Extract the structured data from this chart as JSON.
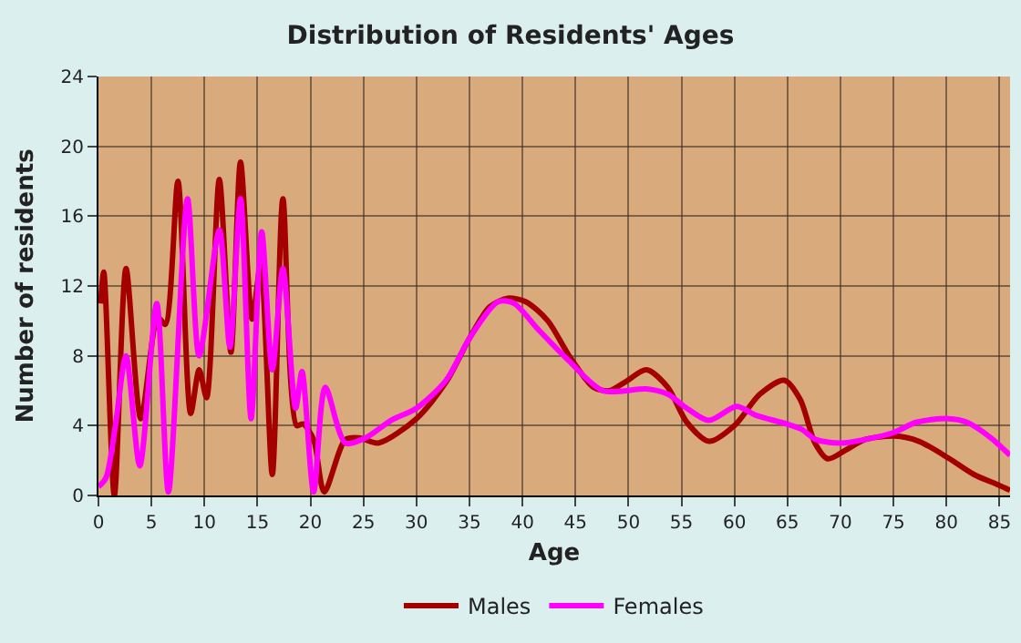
{
  "chart_data": {
    "type": "line",
    "title": "Distribution of Residents' Ages",
    "xlabel": "Age",
    "ylabel": "Number of residents",
    "xlim": [
      0,
      86
    ],
    "xticks": [
      0,
      5,
      10,
      15,
      20,
      25,
      30,
      35,
      40,
      45,
      50,
      55,
      60,
      65,
      70,
      75,
      80,
      85
    ],
    "ylim": [
      0,
      24
    ],
    "yticks": [
      0,
      4,
      8,
      12,
      16,
      20,
      24
    ],
    "grid": true,
    "legend": "bottom",
    "marker": "none",
    "line_style": "solid",
    "series": [
      {
        "name": "Males",
        "color": "#a50000",
        "x": [
          0.2,
          0.5,
          1.5,
          2.6,
          4,
          5.6,
          6.3,
          7.5,
          8.7,
          9.5,
          10.2,
          11.4,
          12.5,
          13.4,
          14.5,
          15.3,
          16.4,
          17.4,
          18.7,
          19.3,
          20.3,
          21.3,
          23.3,
          24.6,
          26.4,
          30,
          32.8,
          35,
          36.9,
          38.6,
          40.3,
          42.4,
          44.4,
          46.7,
          48.2,
          49.7,
          51.7,
          53.7,
          55.5,
          57.6,
          60,
          62.4,
          64.7,
          66.2,
          67.6,
          68.8,
          70.5,
          72.3,
          75.1,
          77.4,
          80.3,
          82.6,
          84.9,
          86
        ],
        "values": [
          11,
          12.8,
          0,
          13,
          4.4,
          10.2,
          9.8,
          18,
          4.7,
          7.2,
          5.6,
          18.1,
          8.2,
          19.1,
          10.1,
          13.2,
          1.2,
          17,
          4,
          4.1,
          3.2,
          0.2,
          3.2,
          3.3,
          3,
          4.4,
          6.5,
          9,
          10.8,
          11.3,
          11.1,
          10,
          8,
          6.2,
          6,
          6.5,
          7.2,
          6.2,
          4.2,
          3.1,
          4,
          5.8,
          6.6,
          5.5,
          3,
          2.1,
          2.6,
          3.2,
          3.4,
          3.1,
          2.1,
          1.2,
          0.6,
          0.3
        ]
      },
      {
        "name": "Females",
        "color": "#ff00ff",
        "x": [
          0,
          0.7,
          1.6,
          2.6,
          3.9,
          5.5,
          6.6,
          8.4,
          9.5,
          11.4,
          12.4,
          13.4,
          14.4,
          15.4,
          16.4,
          17.4,
          18.6,
          19.2,
          20.3,
          21.4,
          23.3,
          25.2,
          27.6,
          30,
          32.8,
          35,
          37.7,
          39.2,
          41.5,
          44.4,
          47.6,
          51.7,
          53.7,
          55.5,
          57.6,
          60.2,
          62,
          64.9,
          66.3,
          67.7,
          70,
          72.3,
          75,
          77.2,
          80.2,
          81.9,
          84.2,
          86
        ],
        "values": [
          0.5,
          1,
          4,
          8,
          1.7,
          11,
          0.2,
          17,
          8,
          15.2,
          8.5,
          17,
          4.4,
          15.1,
          7.2,
          13,
          5,
          7.1,
          0.2,
          6.2,
          3,
          3.3,
          4.3,
          5,
          6.6,
          9,
          11.1,
          11,
          9.5,
          7.7,
          6,
          6.1,
          5.8,
          5,
          4.3,
          5.1,
          4.6,
          4.1,
          3.8,
          3.2,
          3,
          3.2,
          3.6,
          4.2,
          4.4,
          4.2,
          3.3,
          2.3
        ]
      }
    ]
  }
}
